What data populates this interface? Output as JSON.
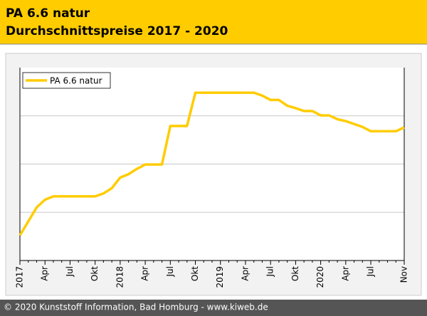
{
  "chart_data": {
    "type": "line",
    "title": "PA 6.6 natur",
    "subtitle": "Durchschnittspreise 2017 - 2020",
    "footer": "© 2020 Kunststoff Information, Bad Homburg - www.kiweb.de",
    "categories": [
      "2017",
      null,
      null,
      "Apr",
      null,
      null,
      "Jul",
      null,
      null,
      "Okt",
      null,
      null,
      "2018",
      null,
      null,
      "Apr",
      null,
      null,
      "Jul",
      null,
      null,
      "Okt",
      null,
      null,
      "2019",
      null,
      null,
      "Apr",
      null,
      null,
      "Jul",
      null,
      null,
      "Okt",
      null,
      null,
      "2020",
      null,
      null,
      "Apr",
      null,
      null,
      "Jul",
      null,
      null,
      null,
      "Nov"
    ],
    "series": [
      {
        "name": "PA 6.6 natur",
        "color": "#ffcc00",
        "values": [
          0.52,
          0.81,
          1.1,
          1.26,
          1.33,
          1.33,
          1.33,
          1.33,
          1.33,
          1.33,
          1.39,
          1.5,
          1.72,
          1.79,
          1.9,
          1.99,
          1.99,
          1.99,
          2.79,
          2.79,
          2.79,
          3.48,
          3.48,
          3.48,
          3.48,
          3.48,
          3.48,
          3.48,
          3.48,
          3.42,
          3.33,
          3.33,
          3.21,
          3.16,
          3.1,
          3.1,
          3.01,
          3.01,
          2.93,
          2.89,
          2.83,
          2.77,
          2.68,
          2.68,
          2.68,
          2.68,
          2.76
        ]
      }
    ],
    "ylim": [
      0,
      4
    ],
    "yticks": [
      1,
      2,
      3
    ],
    "grid": true,
    "legend": "top-left"
  }
}
